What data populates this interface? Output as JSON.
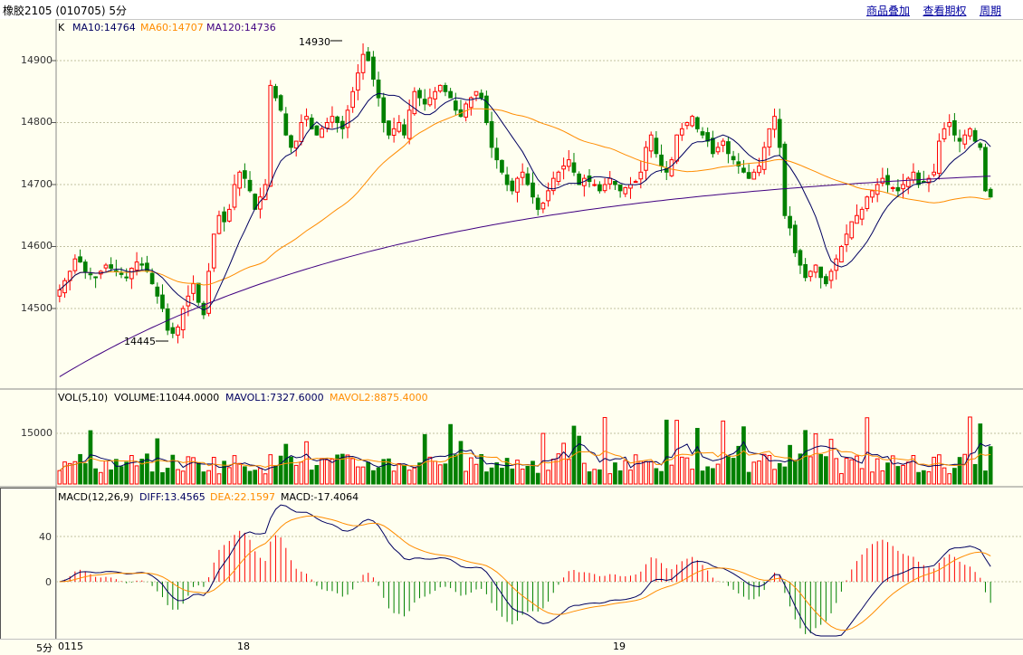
{
  "window": {
    "title": "橡胶2105 (010705) 5分"
  },
  "links": [
    {
      "label": "商品叠加"
    },
    {
      "label": "查看期权"
    },
    {
      "label": "周期"
    }
  ],
  "price_panel": {
    "legend": {
      "k": "K",
      "ma10": "MA10:14764",
      "ma60": "MA60:14707",
      "ma120": "MA120:14736"
    },
    "high_label": "14930",
    "low_label": "14445",
    "yticks": [
      "14900",
      "14800",
      "14700",
      "14600",
      "14500"
    ]
  },
  "volume_panel": {
    "legend": {
      "vol": "VOL(5,10)",
      "volume": "VOLUME:11044.0000",
      "mavol1": "MAVOL1:7327.6000",
      "mavol2": "MAVOL2:8875.4000"
    },
    "ytick": "15000"
  },
  "macd_panel": {
    "legend": {
      "macd": "MACD(12,26,9)",
      "diff": "DIFF:13.4565",
      "dea": "DEA:22.1597",
      "macdval": "MACD:-17.4064"
    },
    "yticks": [
      "40",
      "0"
    ]
  },
  "xaxis": {
    "period": "5分",
    "labels": [
      "0115",
      "18",
      "19"
    ]
  },
  "colors": {
    "up": "#ff0000",
    "down": "#008000",
    "ma10": "#000060",
    "ma60": "#ff8c00",
    "ma120": "#400080",
    "grid": "#c0c0a0",
    "diff": "#000060",
    "dea": "#ff8c00"
  },
  "chart_data": {
    "type": "candlestick",
    "ylim": [
      14380,
      14960
    ],
    "closes": [
      14530,
      14545,
      14560,
      14580,
      14575,
      14560,
      14555,
      14550,
      14560,
      14570,
      14565,
      14560,
      14555,
      14550,
      14565,
      14575,
      14570,
      14560,
      14540,
      14520,
      14500,
      14465,
      14460,
      14470,
      14500,
      14520,
      14540,
      14510,
      14490,
      14560,
      14620,
      14650,
      14640,
      14660,
      14700,
      14720,
      14710,
      14690,
      14660,
      14680,
      14700,
      14860,
      14840,
      14820,
      14780,
      14760,
      14770,
      14800,
      14810,
      14790,
      14780,
      14790,
      14800,
      14810,
      14800,
      14790,
      14820,
      14850,
      14880,
      14910,
      14900,
      14870,
      14840,
      14800,
      14780,
      14790,
      14800,
      14780,
      14820,
      14850,
      14840,
      14830,
      14840,
      14850,
      14860,
      14850,
      14840,
      14820,
      14810,
      14830,
      14840,
      14850,
      14840,
      14800,
      14760,
      14740,
      14720,
      14700,
      14690,
      14710,
      14720,
      14700,
      14680,
      14660,
      14670,
      14690,
      14710,
      14720,
      14730,
      14740,
      14720,
      14700,
      14710,
      14705,
      14700,
      14690,
      14700,
      14710,
      14700,
      14690,
      14695,
      14700,
      14705,
      14720,
      14760,
      14780,
      14750,
      14730,
      14720,
      14740,
      14780,
      14790,
      14800,
      14810,
      14790,
      14780,
      14770,
      14750,
      14760,
      14770,
      14750,
      14740,
      14730,
      14720,
      14710,
      14720,
      14730,
      14760,
      14790,
      14810,
      14760,
      14650,
      14630,
      14590,
      14570,
      14550,
      14560,
      14570,
      14550,
      14540,
      14560,
      14580,
      14600,
      14620,
      14640,
      14650,
      14660,
      14680,
      14690,
      14700,
      14710,
      14700,
      14695,
      14690,
      14700,
      14710,
      14720,
      14700,
      14705,
      14710,
      14720,
      14770,
      14790,
      14800,
      14780,
      14770,
      14780,
      14790,
      14770,
      14760,
      14690,
      14680
    ]
  }
}
